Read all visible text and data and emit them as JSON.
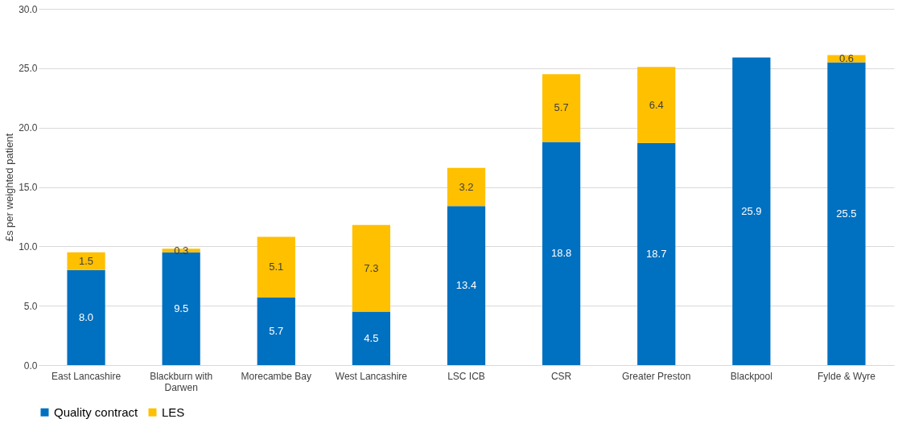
{
  "chart_data": {
    "type": "bar",
    "stacked": true,
    "ylabel": "£s per weighted patient",
    "categories": [
      "East Lancashire",
      "Blackburn with Darwen",
      "Morecambe Bay",
      "West Lancashire",
      "LSC ICB",
      "CSR",
      "Greater Preston",
      "Blackpool",
      "Fylde & Wyre"
    ],
    "series": [
      {
        "name": "Quality contract",
        "color": "#0070c0",
        "values": [
          8.0,
          9.5,
          5.7,
          4.5,
          13.4,
          18.8,
          18.7,
          25.9,
          25.5
        ],
        "value_labels": [
          "8.0",
          "9.5",
          "5.7",
          "4.5",
          "13.4",
          "18.8",
          "18.7",
          "25.9",
          "25.5"
        ]
      },
      {
        "name": "LES",
        "color": "#ffc000",
        "values": [
          1.5,
          0.3,
          5.1,
          7.3,
          3.2,
          5.7,
          6.4,
          null,
          0.6
        ],
        "value_labels": [
          "1.5",
          "0.3",
          "5.1",
          "7.3",
          "3.2",
          "5.7",
          "6.4",
          null,
          "0.6"
        ]
      }
    ],
    "ylim": [
      0,
      30
    ],
    "yticks": [
      {
        "value": 0,
        "label": "0.0"
      },
      {
        "value": 5,
        "label": "5.0"
      },
      {
        "value": 10,
        "label": "10.0"
      },
      {
        "value": 15,
        "label": "15.0"
      },
      {
        "value": 20,
        "label": "20.0"
      },
      {
        "value": 25,
        "label": "25.0"
      },
      {
        "value": 30,
        "label": "30.0"
      }
    ],
    "grid": "y",
    "legend": "bottom"
  }
}
